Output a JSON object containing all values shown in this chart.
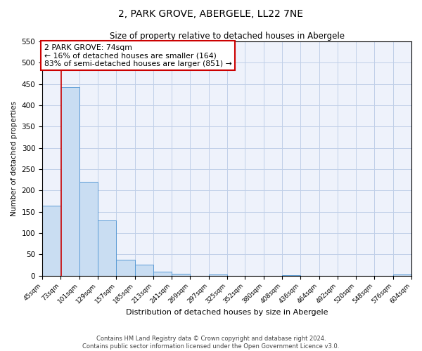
{
  "title": "2, PARK GROVE, ABERGELE, LL22 7NE",
  "subtitle": "Size of property relative to detached houses in Abergele",
  "xlabel": "Distribution of detached houses by size in Abergele",
  "ylabel": "Number of detached properties",
  "bin_edges": [
    45,
    73,
    101,
    129,
    157,
    185,
    213,
    241,
    269,
    297,
    325,
    352,
    380,
    408,
    436,
    464,
    492,
    520,
    548,
    576,
    604
  ],
  "bin_labels": [
    "45sqm",
    "73sqm",
    "101sqm",
    "129sqm",
    "157sqm",
    "185sqm",
    "213sqm",
    "241sqm",
    "269sqm",
    "297sqm",
    "325sqm",
    "352sqm",
    "380sqm",
    "408sqm",
    "436sqm",
    "464sqm",
    "492sqm",
    "520sqm",
    "548sqm",
    "576sqm",
    "604sqm"
  ],
  "counts": [
    165,
    443,
    220,
    130,
    37,
    25,
    10,
    4,
    0,
    3,
    0,
    0,
    0,
    1,
    0,
    0,
    0,
    0,
    0,
    3
  ],
  "bar_color": "#c9ddf2",
  "bar_edge_color": "#5b9bd5",
  "property_line_x": 74,
  "property_line_color": "#cc0000",
  "ylim": [
    0,
    550
  ],
  "yticks": [
    0,
    50,
    100,
    150,
    200,
    250,
    300,
    350,
    400,
    450,
    500,
    550
  ],
  "annotation_box_text": "2 PARK GROVE: 74sqm\n← 16% of detached houses are smaller (164)\n83% of semi-detached houses are larger (851) →",
  "annotation_box_color": "#cc0000",
  "footer_line1": "Contains HM Land Registry data © Crown copyright and database right 2024.",
  "footer_line2": "Contains public sector information licensed under the Open Government Licence v3.0.",
  "background_color": "#eef2fb",
  "grid_color": "#c0cfe8"
}
